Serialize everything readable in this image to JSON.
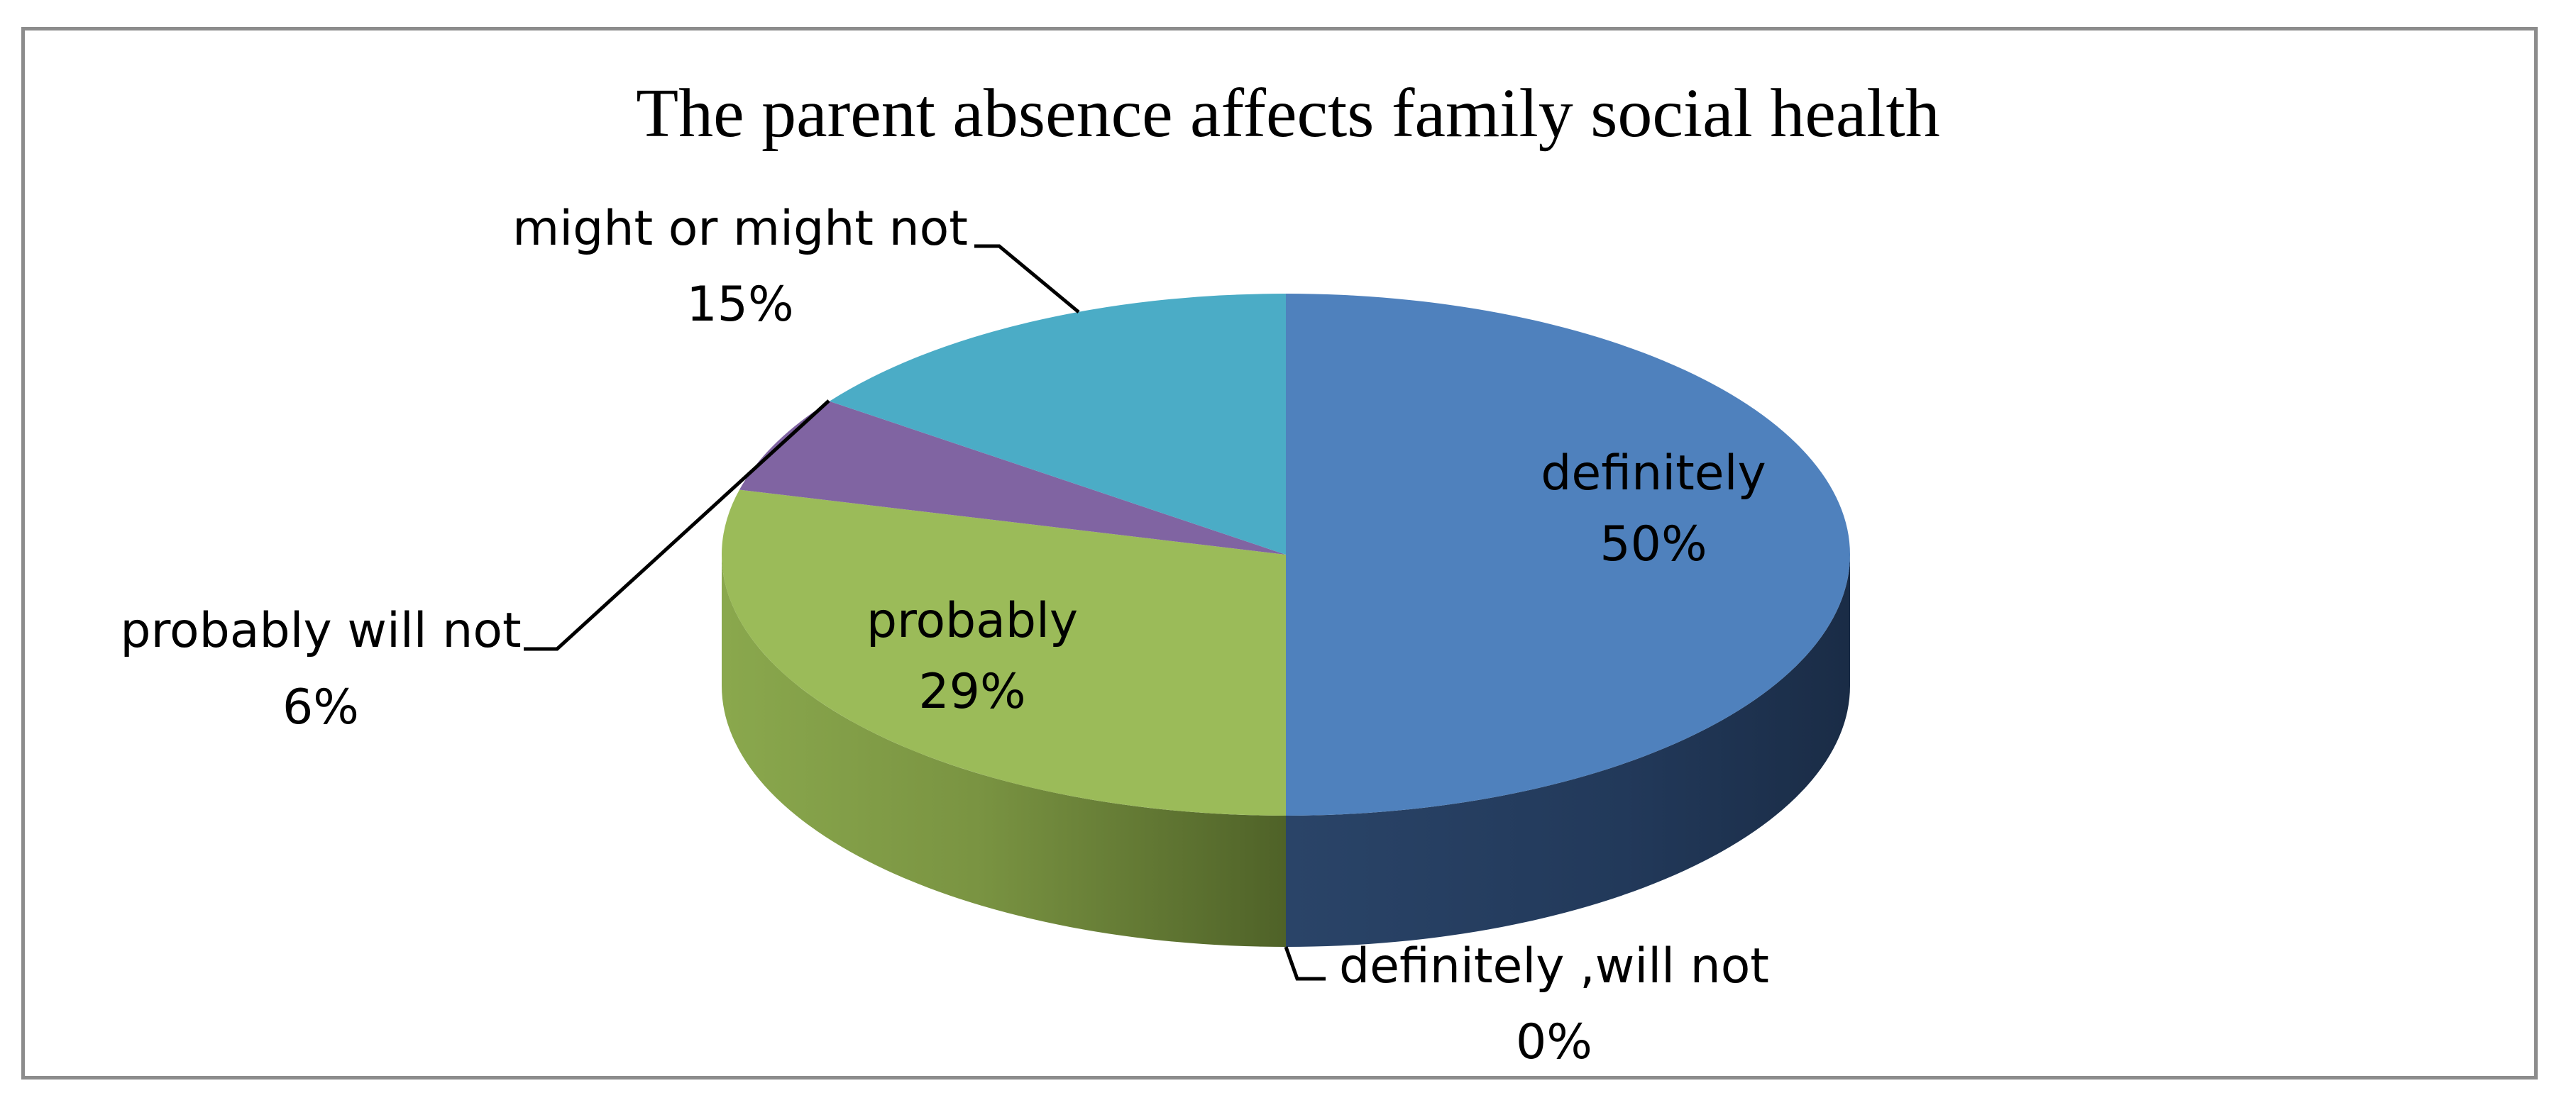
{
  "chart_data": {
    "type": "pie",
    "style": "3d",
    "title": "The parent absence affects family social health",
    "slices": [
      {
        "label": "definitely",
        "value": 50,
        "value_label": "50%",
        "color": "#4f81bd",
        "side_color": "#1f3350"
      },
      {
        "label": "definitely ,will not",
        "value": 0,
        "value_label": "0%",
        "color": "#c0504d",
        "side_color": "#5e2221"
      },
      {
        "label": "probably",
        "value": 29,
        "value_label": "29%",
        "color": "#9bbb59",
        "side_color": "#5a6e2f"
      },
      {
        "label": "probably will not",
        "value": 6,
        "value_label": "6%",
        "color": "#8064a2",
        "side_color": "#4a3563"
      },
      {
        "label": "might or might not",
        "value": 15,
        "value_label": "15%",
        "color": "#4bacc6",
        "side_color": "#23606f"
      }
    ]
  }
}
